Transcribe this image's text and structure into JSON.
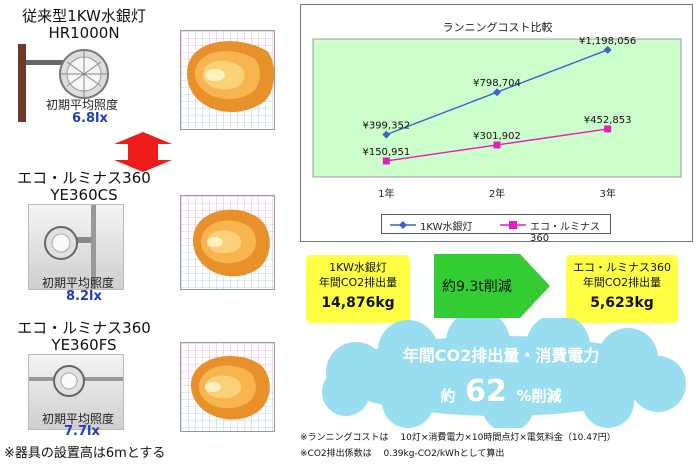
{
  "left": {
    "lamps": [
      {
        "title": "従来型1KW水銀灯",
        "model": "HR1000N",
        "illum_label": "初期平均照度",
        "illum_value": "6.8lx"
      },
      {
        "title": "エコ・ルミナス360",
        "model": "YE360CS",
        "illum_label": "初期平均照度",
        "illum_value": "8.2lx"
      },
      {
        "title": "エコ・ルミナス360",
        "model": "YE360FS",
        "illum_label": "初期平均照度",
        "illum_value": "7.7lx"
      }
    ],
    "note": "※器具の設置高は6mとする"
  },
  "chart_data": {
    "type": "line",
    "title": "ランニングコスト比較",
    "categories": [
      "1年",
      "2年",
      "3年"
    ],
    "series": [
      {
        "name": "1KW水銀灯",
        "values": [
          399352,
          798704,
          1198056
        ],
        "labels": [
          "¥399,352",
          "¥798,704",
          "¥1,198,056"
        ],
        "color": "#3a64c8",
        "marker": "diamond"
      },
      {
        "name": "エコ・ルミナス360",
        "values": [
          150951,
          301902,
          452853
        ],
        "labels": [
          "¥150,951",
          "¥301,902",
          "¥452,853"
        ],
        "color": "#e61ebe",
        "marker": "square"
      }
    ],
    "ylim": [
      0,
      1300000
    ],
    "grid": false,
    "legend": "bottom"
  },
  "co2": {
    "left_head_1": "1KW水銀灯",
    "left_head_2": "年間CO2排出量",
    "left_value": "14,876kg",
    "arrow": "約9.3t削減",
    "right_head_1": "エコ・ルミナス360",
    "right_head_2": "年間CO2排出量",
    "right_value": "5,623kg"
  },
  "cloud": {
    "title": "年間CO2排出量・消費電力",
    "approx": "約",
    "percent": "62",
    "unit": "%削減"
  },
  "footnotes": [
    "※ランニングコストは　 10灯×消費電力×10時間点灯×電気料金（10.47円）",
    "※CO2排出係数は　 0.39kg-CO2/kWhとして算出"
  ],
  "colors": {
    "plot_bg": "#ccffcc",
    "arrow_bg": "#33cc33",
    "cloud": "#99ddf0",
    "highlight": "#ffff44",
    "illum_text": "#1f3fb4"
  }
}
